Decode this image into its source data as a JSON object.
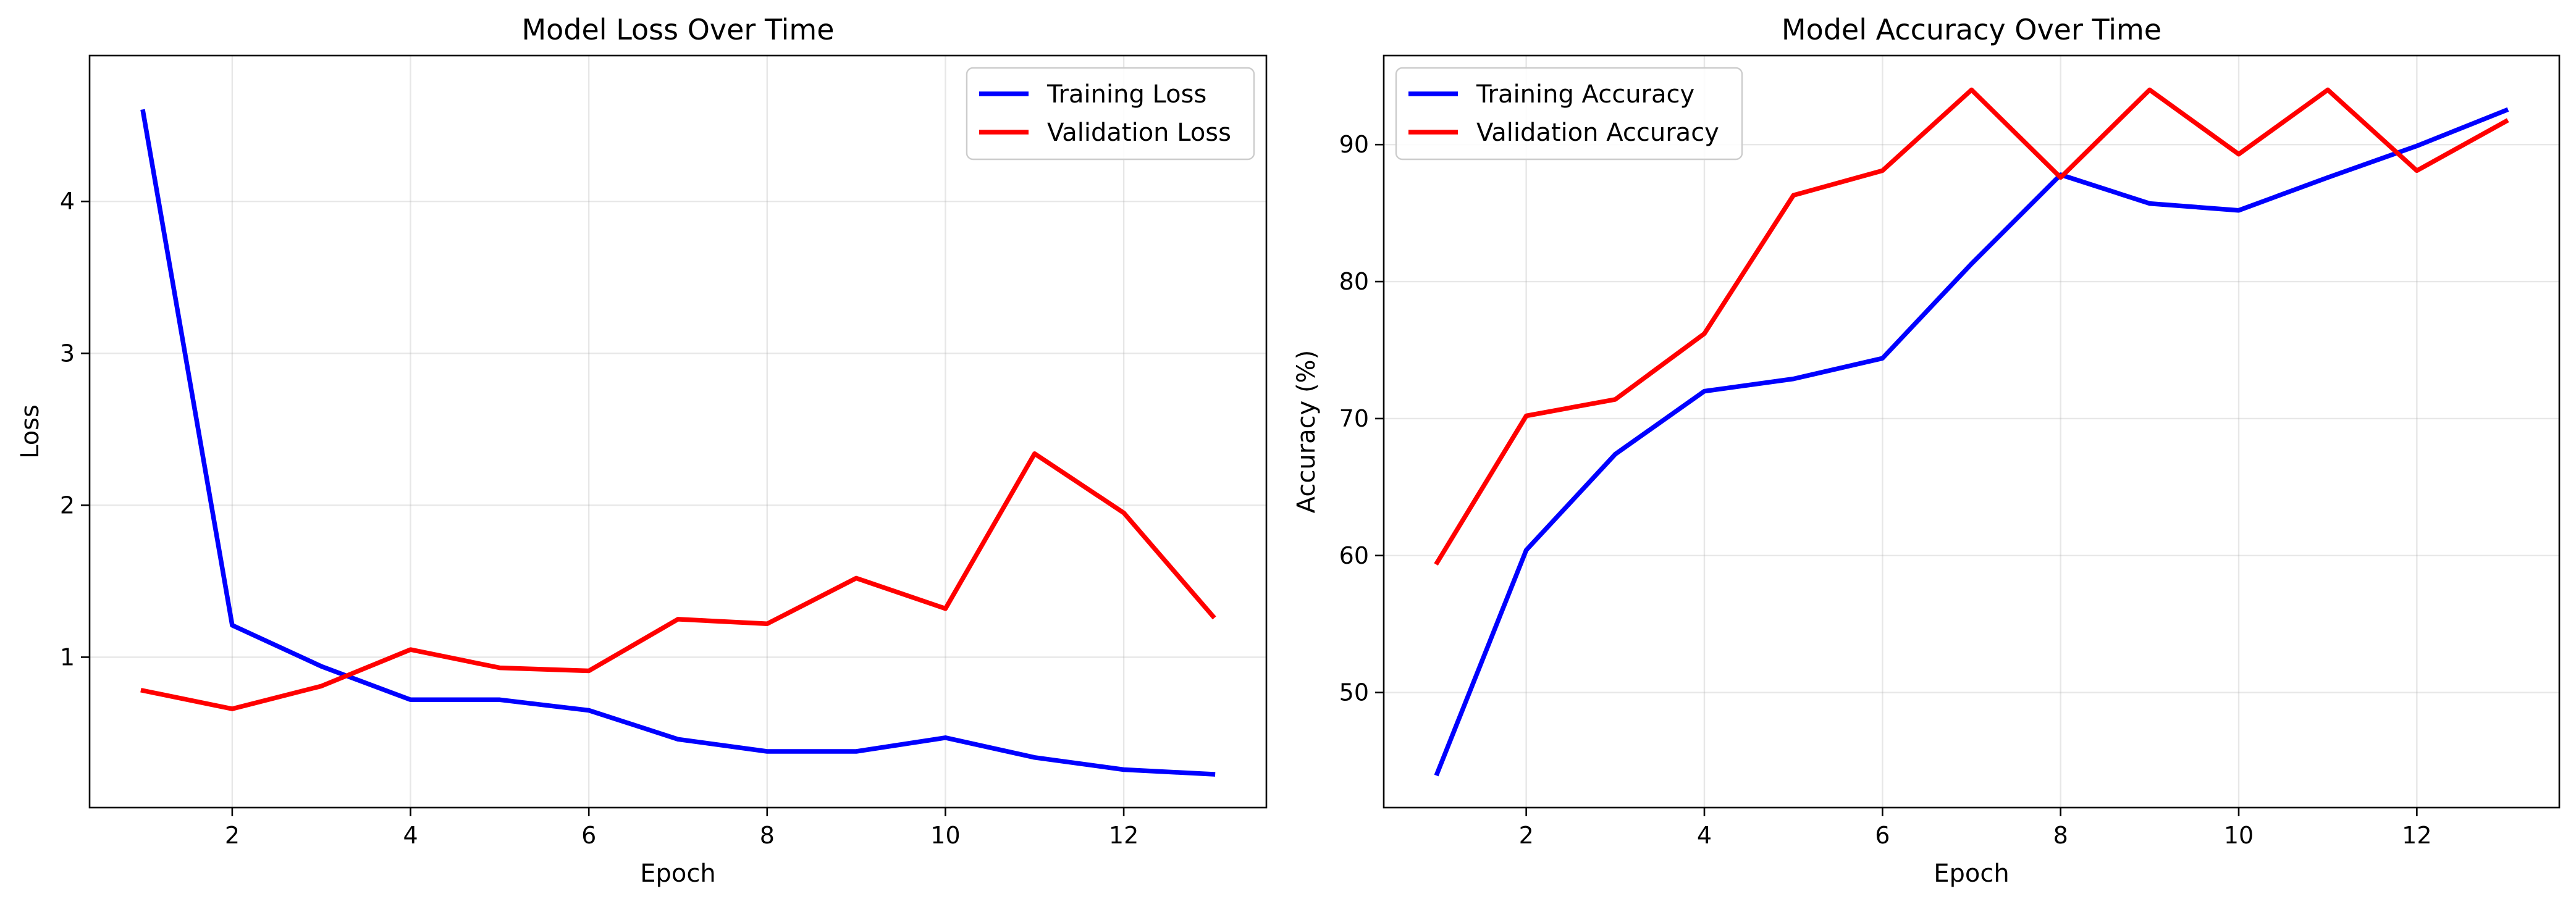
{
  "chart_data": [
    {
      "type": "line",
      "title": "Model Loss Over Time",
      "xlabel": "Epoch",
      "ylabel": "Loss",
      "xlim": [
        0.4,
        13.6
      ],
      "ylim": [
        0.01,
        4.96
      ],
      "xticks": [
        2,
        4,
        6,
        8,
        10,
        12
      ],
      "yticks": [
        1,
        2,
        3,
        4
      ],
      "grid": true,
      "legend_position": "top-right",
      "x": [
        1,
        2,
        3,
        4,
        5,
        6,
        7,
        8,
        9,
        10,
        11,
        12,
        13
      ],
      "series": [
        {
          "name": "Training Loss",
          "color": "#0000ff",
          "values": [
            4.59,
            1.21,
            0.94,
            0.72,
            0.72,
            0.65,
            0.46,
            0.38,
            0.38,
            0.47,
            0.34,
            0.26,
            0.23
          ]
        },
        {
          "name": "Validation Loss",
          "color": "#ff0000",
          "values": [
            0.78,
            0.66,
            0.81,
            1.05,
            0.93,
            0.91,
            1.25,
            1.22,
            1.52,
            1.32,
            2.34,
            1.95,
            1.27
          ]
        }
      ]
    },
    {
      "type": "line",
      "title": "Model Accuracy Over Time",
      "xlabel": "Epoch",
      "ylabel": "Accuracy (%)",
      "xlim": [
        0.4,
        13.6
      ],
      "ylim": [
        41.6,
        96.5
      ],
      "xticks": [
        2,
        4,
        6,
        8,
        10,
        12
      ],
      "yticks": [
        50,
        60,
        70,
        80,
        90
      ],
      "grid": true,
      "legend_position": "top-left",
      "x": [
        1,
        2,
        3,
        4,
        5,
        6,
        7,
        8,
        9,
        10,
        11,
        12,
        13
      ],
      "series": [
        {
          "name": "Training Accuracy",
          "color": "#0000ff",
          "values": [
            44.1,
            60.4,
            67.4,
            72.0,
            72.9,
            74.4,
            81.3,
            87.8,
            85.7,
            85.2,
            87.6,
            89.9,
            92.5
          ]
        },
        {
          "name": "Validation Accuracy",
          "color": "#ff0000",
          "values": [
            59.5,
            70.2,
            71.4,
            76.2,
            86.3,
            88.1,
            94.0,
            87.6,
            94.0,
            89.3,
            94.0,
            88.1,
            91.7
          ]
        }
      ]
    }
  ]
}
